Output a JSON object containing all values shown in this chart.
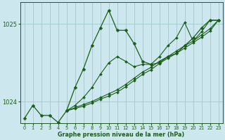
{
  "xlabel": "Graphe pression niveau de la mer (hPa)",
  "background_color": "#cce8ee",
  "grid_color": "#99cccc",
  "line_color": "#1a5c1a",
  "xlim": [
    -0.5,
    23.5
  ],
  "ylim": [
    1023.72,
    1025.28
  ],
  "yticks": [
    1024,
    1025
  ],
  "xticks": [
    0,
    1,
    2,
    3,
    4,
    5,
    6,
    7,
    8,
    9,
    10,
    11,
    12,
    13,
    14,
    15,
    16,
    17,
    18,
    19,
    20,
    21,
    22,
    23
  ],
  "series": [
    {
      "x": [
        0,
        1,
        2,
        3,
        4,
        5,
        6,
        7,
        8,
        9,
        10,
        11,
        12,
        13,
        14,
        15,
        16,
        17,
        18,
        19,
        20,
        21,
        22,
        23
      ],
      "y": [
        1023.78,
        1023.95,
        1023.82,
        1023.82,
        1023.73,
        1023.88,
        1024.18,
        1024.42,
        1024.72,
        1024.95,
        1025.18,
        1024.92,
        1024.92,
        1024.75,
        1024.52,
        1024.48,
        1024.5,
        1024.58,
        1024.62,
        1024.72,
        1024.82,
        1024.95,
        1025.05,
        1025.05
      ],
      "marker": "D",
      "markersize": 2.5,
      "lw": 0.9
    },
    {
      "x": [
        5,
        6,
        7,
        8,
        9,
        10,
        11,
        12,
        13,
        14,
        15,
        16,
        17,
        18,
        19,
        20,
        21,
        22,
        23
      ],
      "y": [
        1023.88,
        1023.92,
        1023.96,
        1024.0,
        1024.05,
        1024.1,
        1024.15,
        1024.22,
        1024.3,
        1024.38,
        1024.44,
        1024.52,
        1024.58,
        1024.65,
        1024.72,
        1024.78,
        1024.86,
        1024.94,
        1025.05
      ],
      "marker": "D",
      "markersize": 2.0,
      "lw": 0.8
    },
    {
      "x": [
        5,
        6,
        7,
        8,
        9,
        10,
        11,
        12,
        13,
        14,
        15,
        16,
        17,
        18,
        19,
        20,
        21,
        22,
        23
      ],
      "y": [
        1023.88,
        1023.91,
        1023.94,
        1023.98,
        1024.03,
        1024.07,
        1024.12,
        1024.19,
        1024.27,
        1024.35,
        1024.41,
        1024.49,
        1024.56,
        1024.62,
        1024.69,
        1024.76,
        1024.83,
        1024.91,
        1025.05
      ],
      "marker": "D",
      "markersize": 2.0,
      "lw": 0.8
    },
    {
      "x": [
        5,
        6,
        7,
        8,
        9,
        10,
        11,
        12,
        13,
        14,
        15,
        16,
        17,
        18,
        19,
        20,
        21,
        22,
        23
      ],
      "y": [
        1023.88,
        1023.95,
        1024.05,
        1024.18,
        1024.35,
        1024.5,
        1024.58,
        1024.52,
        1024.45,
        1024.48,
        1024.48,
        1024.58,
        1024.72,
        1024.82,
        1025.02,
        1024.78,
        1024.9,
        1025.05,
        1025.05
      ],
      "marker": "D",
      "markersize": 2.0,
      "lw": 0.8
    }
  ]
}
